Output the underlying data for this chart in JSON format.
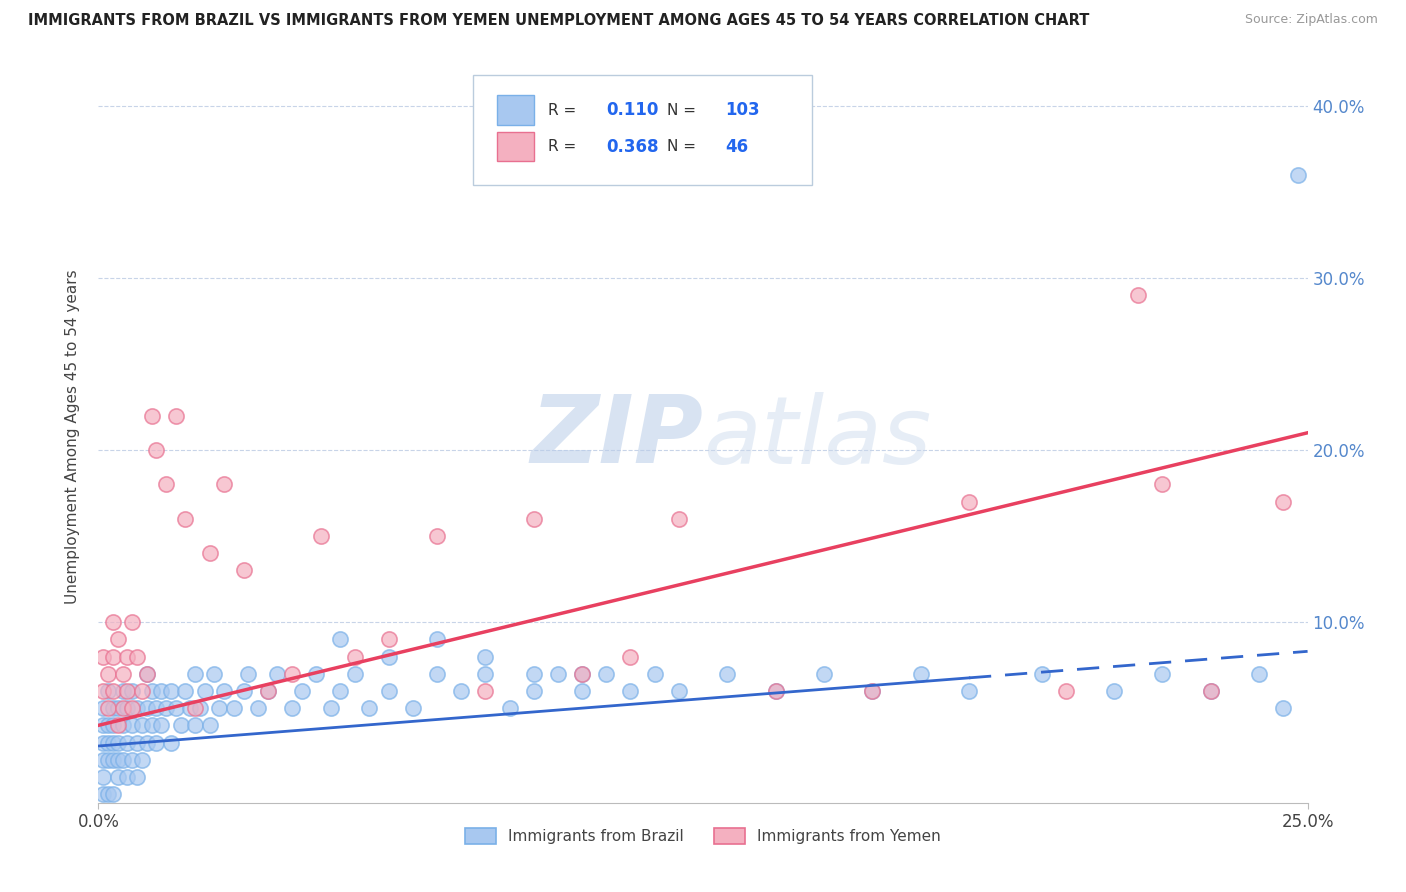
{
  "title": "IMMIGRANTS FROM BRAZIL VS IMMIGRANTS FROM YEMEN UNEMPLOYMENT AMONG AGES 45 TO 54 YEARS CORRELATION CHART",
  "source": "Source: ZipAtlas.com",
  "xlabel_brazil": "Immigrants from Brazil",
  "xlabel_yemen": "Immigrants from Yemen",
  "ylabel": "Unemployment Among Ages 45 to 54 years",
  "brazil_R": 0.11,
  "brazil_N": 103,
  "yemen_R": 0.368,
  "yemen_N": 46,
  "xlim": [
    0.0,
    0.25
  ],
  "ylim": [
    -0.005,
    0.42
  ],
  "xtick_positions": [
    0.0,
    0.25
  ],
  "xtick_labels": [
    "0.0%",
    "25.0%"
  ],
  "ytick_positions": [
    0.0,
    0.1,
    0.2,
    0.3,
    0.4
  ],
  "ytick_labels_left": [
    "",
    "",
    "",
    "",
    ""
  ],
  "ytick_labels_right": [
    "",
    "10.0%",
    "20.0%",
    "30.0%",
    "40.0%"
  ],
  "brazil_color": "#a8c8f0",
  "brazil_edge_color": "#7ab0e8",
  "yemen_color": "#f4b0c0",
  "yemen_edge_color": "#e87090",
  "brazil_line_color": "#3366cc",
  "brazil_line_solid_end": 0.18,
  "yemen_line_color": "#e84060",
  "watermark_text": "ZIPatlas",
  "watermark_color": "#c8ddf0",
  "background_color": "#ffffff",
  "grid_color": "#c8d4e8",
  "brazil_intercept": 0.028,
  "brazil_slope": 0.22,
  "yemen_intercept": 0.04,
  "yemen_slope": 0.68,
  "brazil_scatter_x": [
    0.001,
    0.001,
    0.001,
    0.001,
    0.001,
    0.001,
    0.002,
    0.002,
    0.002,
    0.002,
    0.002,
    0.003,
    0.003,
    0.003,
    0.003,
    0.003,
    0.004,
    0.004,
    0.004,
    0.004,
    0.005,
    0.005,
    0.005,
    0.006,
    0.006,
    0.006,
    0.007,
    0.007,
    0.007,
    0.008,
    0.008,
    0.008,
    0.009,
    0.009,
    0.01,
    0.01,
    0.01,
    0.011,
    0.011,
    0.012,
    0.012,
    0.013,
    0.013,
    0.014,
    0.015,
    0.015,
    0.016,
    0.017,
    0.018,
    0.019,
    0.02,
    0.02,
    0.021,
    0.022,
    0.023,
    0.024,
    0.025,
    0.026,
    0.028,
    0.03,
    0.031,
    0.033,
    0.035,
    0.037,
    0.04,
    0.042,
    0.045,
    0.048,
    0.05,
    0.053,
    0.056,
    0.06,
    0.065,
    0.07,
    0.075,
    0.08,
    0.085,
    0.09,
    0.095,
    0.1,
    0.105,
    0.11,
    0.115,
    0.12,
    0.13,
    0.14,
    0.15,
    0.16,
    0.17,
    0.18,
    0.195,
    0.21,
    0.22,
    0.23,
    0.24,
    0.245,
    0.248,
    0.05,
    0.06,
    0.07,
    0.08,
    0.09,
    0.1
  ],
  "brazil_scatter_y": [
    0.02,
    0.03,
    0.04,
    0.0,
    0.01,
    0.05,
    0.03,
    0.04,
    0.02,
    0.0,
    0.06,
    0.02,
    0.03,
    0.05,
    0.0,
    0.04,
    0.03,
    0.01,
    0.05,
    0.02,
    0.04,
    0.02,
    0.06,
    0.03,
    0.05,
    0.01,
    0.04,
    0.02,
    0.06,
    0.03,
    0.05,
    0.01,
    0.04,
    0.02,
    0.05,
    0.03,
    0.07,
    0.04,
    0.06,
    0.03,
    0.05,
    0.06,
    0.04,
    0.05,
    0.03,
    0.06,
    0.05,
    0.04,
    0.06,
    0.05,
    0.04,
    0.07,
    0.05,
    0.06,
    0.04,
    0.07,
    0.05,
    0.06,
    0.05,
    0.06,
    0.07,
    0.05,
    0.06,
    0.07,
    0.05,
    0.06,
    0.07,
    0.05,
    0.06,
    0.07,
    0.05,
    0.06,
    0.05,
    0.07,
    0.06,
    0.07,
    0.05,
    0.06,
    0.07,
    0.06,
    0.07,
    0.06,
    0.07,
    0.06,
    0.07,
    0.06,
    0.07,
    0.06,
    0.07,
    0.06,
    0.07,
    0.06,
    0.07,
    0.06,
    0.07,
    0.05,
    0.36,
    0.09,
    0.08,
    0.09,
    0.08,
    0.07,
    0.07
  ],
  "yemen_scatter_x": [
    0.001,
    0.001,
    0.002,
    0.002,
    0.003,
    0.003,
    0.003,
    0.004,
    0.004,
    0.005,
    0.005,
    0.006,
    0.006,
    0.007,
    0.007,
    0.008,
    0.009,
    0.01,
    0.011,
    0.012,
    0.014,
    0.016,
    0.018,
    0.02,
    0.023,
    0.026,
    0.03,
    0.035,
    0.04,
    0.046,
    0.053,
    0.06,
    0.07,
    0.08,
    0.09,
    0.1,
    0.11,
    0.12,
    0.14,
    0.16,
    0.18,
    0.2,
    0.215,
    0.22,
    0.23,
    0.245
  ],
  "yemen_scatter_y": [
    0.06,
    0.08,
    0.07,
    0.05,
    0.1,
    0.08,
    0.06,
    0.09,
    0.04,
    0.07,
    0.05,
    0.08,
    0.06,
    0.1,
    0.05,
    0.08,
    0.06,
    0.07,
    0.22,
    0.2,
    0.18,
    0.22,
    0.16,
    0.05,
    0.14,
    0.18,
    0.13,
    0.06,
    0.07,
    0.15,
    0.08,
    0.09,
    0.15,
    0.06,
    0.16,
    0.07,
    0.08,
    0.16,
    0.06,
    0.06,
    0.17,
    0.06,
    0.29,
    0.18,
    0.06,
    0.17
  ]
}
